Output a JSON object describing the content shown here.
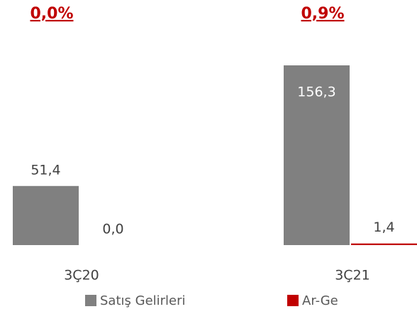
{
  "chart_data": {
    "type": "bar",
    "categories": [
      "3Ç20",
      "3Ç21"
    ],
    "series": [
      {
        "name": "Satış Gelirleri",
        "color": "#808080",
        "values": [
          51.4,
          156.3
        ],
        "value_labels": [
          "51,4",
          "156,3"
        ]
      },
      {
        "name": "Ar-Ge",
        "color": "#c00000",
        "values": [
          0.0,
          1.4
        ],
        "value_labels": [
          "0,0",
          "1,4"
        ]
      }
    ],
    "annotations": [
      "0,0%",
      "0,9%"
    ]
  }
}
